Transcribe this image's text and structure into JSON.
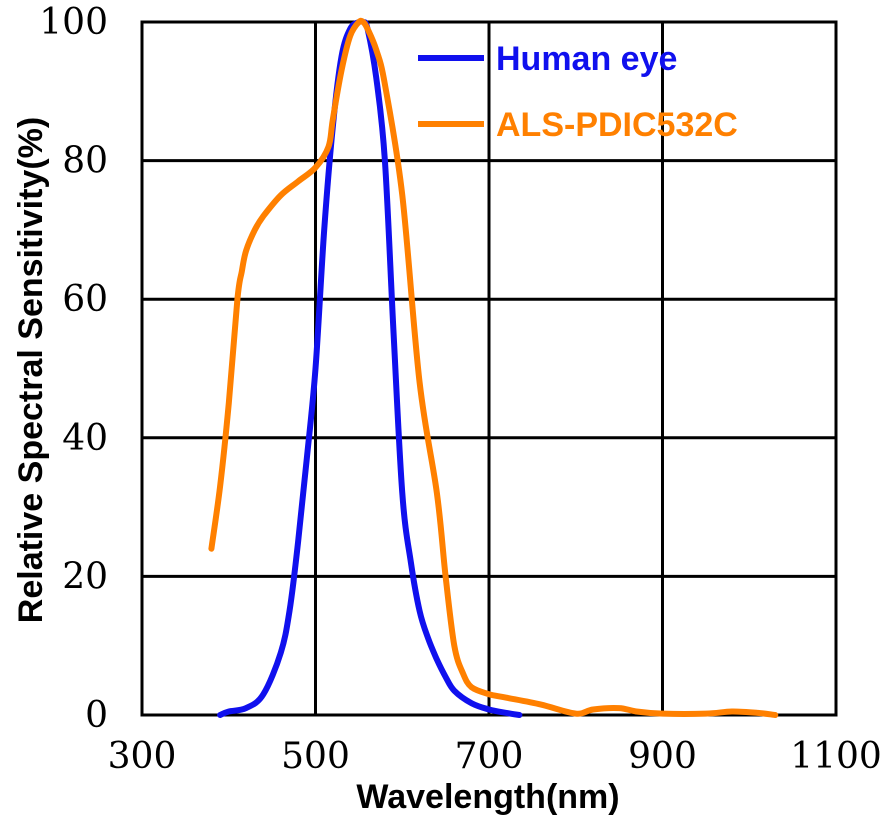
{
  "chart_data": {
    "type": "line",
    "xlabel": "Wavelength(nm)",
    "ylabel": "Relative Spectral Sensitivity(%)",
    "xlim": [
      300,
      1100
    ],
    "ylim": [
      0,
      100
    ],
    "xticks": [
      "300",
      "500",
      "700",
      "900",
      "1100"
    ],
    "yticks": [
      "0",
      "20",
      "40",
      "60",
      "80",
      "100"
    ],
    "grid": true,
    "legend": "top-right",
    "series": [
      {
        "name": "Human eye",
        "color": "#1010ee",
        "x": [
          390,
          400,
          420,
          440,
          460,
          470,
          480,
          490,
          500,
          510,
          520,
          530,
          540,
          550,
          555,
          560,
          570,
          580,
          590,
          600,
          610,
          620,
          630,
          640,
          650,
          660,
          680,
          700,
          720,
          735
        ],
        "y": [
          0,
          0.5,
          1,
          3,
          9,
          15,
          25,
          37,
          50,
          70,
          85,
          95,
          99,
          100,
          100,
          99,
          92,
          80,
          55,
          32,
          22,
          15,
          11,
          8,
          5.5,
          3.5,
          1.7,
          0.8,
          0.3,
          0
        ]
      },
      {
        "name": "ALS-PDIC532C",
        "color": "#ff8000",
        "x": [
          380,
          390,
          400,
          410,
          415,
          420,
          430,
          440,
          460,
          480,
          500,
          515,
          520,
          530,
          540,
          550,
          555,
          560,
          570,
          580,
          600,
          620,
          640,
          650,
          660,
          670,
          680,
          700,
          720,
          760,
          800,
          820,
          850,
          870,
          900,
          950,
          980,
          1010,
          1030
        ],
        "y": [
          24,
          33,
          45,
          60,
          64,
          67,
          70,
          72,
          75,
          77,
          79,
          82,
          86,
          93,
          98,
          100,
          100,
          99,
          96,
          91,
          75,
          48,
          32,
          20,
          10,
          6,
          4,
          3,
          2.5,
          1.5,
          0.2,
          0.8,
          1,
          0.5,
          0.2,
          0.2,
          0.5,
          0.3,
          0
        ]
      }
    ]
  }
}
